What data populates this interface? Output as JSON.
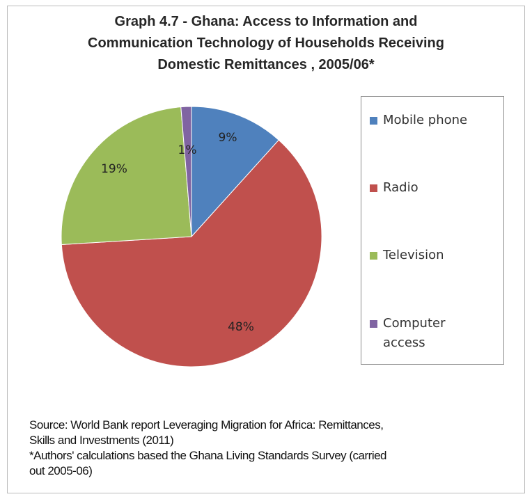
{
  "chart_data": {
    "type": "pie",
    "title_lines": [
      "Graph 4.7 - Ghana:  Access to Information and",
      "Communication Technology  of Households Receiving",
      "Domestic Remittances , 2005/06*"
    ],
    "slices": [
      {
        "name": "Mobile phone",
        "value": 9,
        "label": "9%",
        "color": "#4f81bd"
      },
      {
        "name": "Radio",
        "value": 48,
        "label": "48%",
        "color": "#c0504d"
      },
      {
        "name": "Television",
        "value": 19,
        "label": "19%",
        "color": "#9bbb59"
      },
      {
        "name": "Computer access",
        "value": 1,
        "label": "1%",
        "color": "#8064a2"
      }
    ],
    "legend_position": "right"
  },
  "legend": [
    {
      "label": "Mobile phone",
      "color": "#4f81bd"
    },
    {
      "label": "Radio",
      "color": "#c0504d"
    },
    {
      "label": "Television",
      "color": "#9bbb59"
    },
    {
      "label": "Computer access",
      "color": "#8064a2"
    }
  ],
  "source": {
    "lines": [
      "Source: World Bank report Leveraging Migration for Africa: Remittances,",
      "Skills and Investments (2011)",
      "*Authors' calculations based the Ghana Living Standards Survey (carried",
      "out 2005-06)"
    ]
  }
}
